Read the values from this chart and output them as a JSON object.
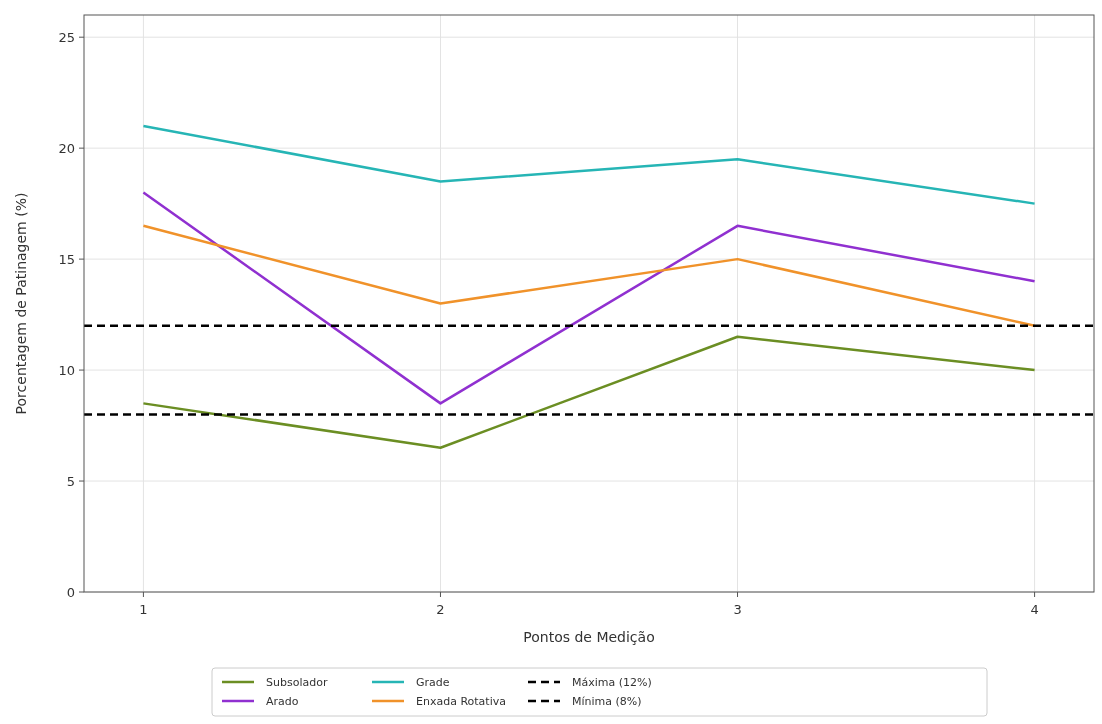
{
  "chart_data": {
    "type": "line",
    "xlabel": "Pontos de Medição",
    "ylabel": "Porcentagem de Patinagem (%)",
    "x": [
      1,
      2,
      3,
      4
    ],
    "series": [
      {
        "name": "Subsolador",
        "color": "#6b8e23",
        "values": [
          8.5,
          6.5,
          11.5,
          10
        ]
      },
      {
        "name": "Arado",
        "color": "#9030d0",
        "values": [
          18,
          8.5,
          16.5,
          14
        ]
      },
      {
        "name": "Grade",
        "color": "#26b5b5",
        "values": [
          21,
          18.5,
          19.5,
          17.5
        ]
      },
      {
        "name": "Enxada Rotativa",
        "color": "#f0922a",
        "values": [
          16.5,
          13,
          15,
          12
        ]
      }
    ],
    "ref_lines": [
      {
        "axis": "y",
        "value": 12,
        "label": "Máxima (12%)",
        "color": "#000000",
        "line_style": "dashed"
      },
      {
        "axis": "y",
        "value": 8,
        "label": "Mínima (8%)",
        "color": "#000000",
        "line_style": "dashed"
      }
    ],
    "xlim": [
      0.8,
      4.2
    ],
    "ylim": [
      0,
      26
    ],
    "xticks": [
      1,
      2,
      3,
      4
    ],
    "yticks": [
      0,
      5,
      10,
      15,
      20,
      25
    ],
    "grid": true,
    "legend": "bottom",
    "marker": "none",
    "line_style": "solid"
  }
}
